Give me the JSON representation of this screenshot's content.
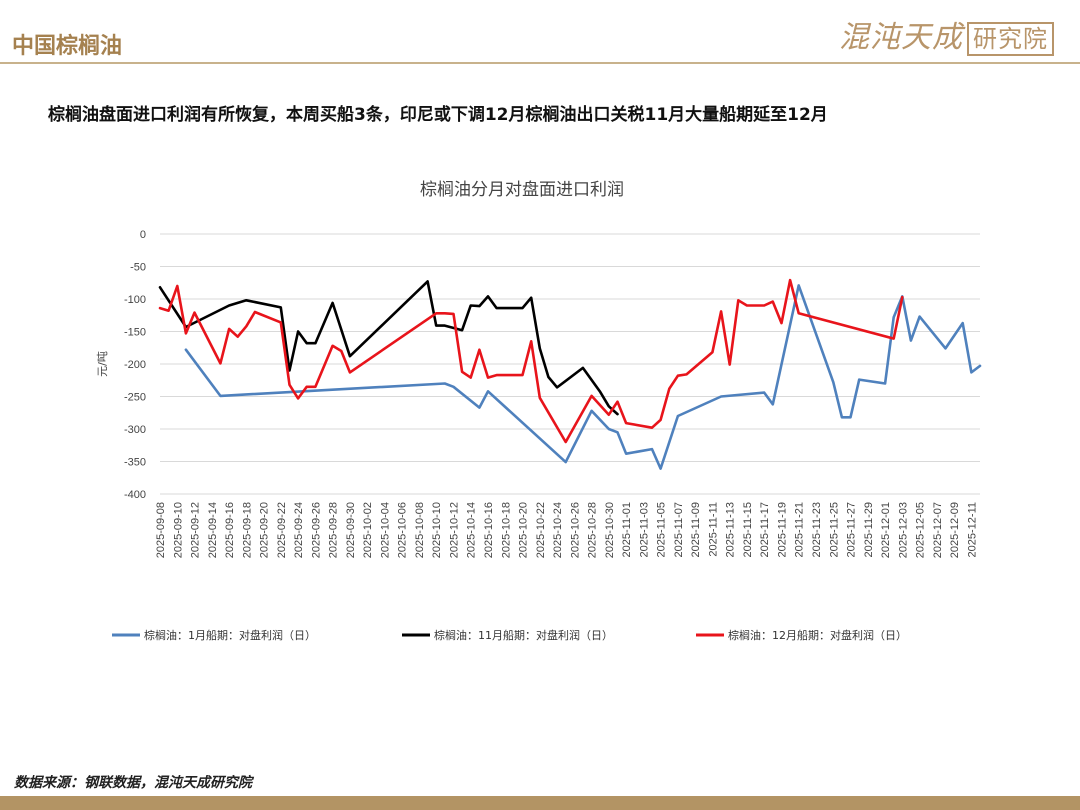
{
  "header": {
    "title": "中国棕榈油",
    "brand_main": "混沌天成",
    "brand_box": "研究院"
  },
  "headline": "棕榈油盘面进口利润有所恢复，本周买船3条，印尼或下调12月棕榈油出口关税11月大量船期延至12月",
  "footer": {
    "source": "数据来源：钢联数据，混沌天成研究院"
  },
  "colors": {
    "jan": "#4f81bd",
    "nov": "#000000",
    "dec": "#e8141b",
    "accent": "#b39464"
  },
  "chart_data": {
    "type": "line",
    "title": "棕榈油分月对盘面进口利润",
    "ylabel": "元/吨",
    "ylim": [
      -400,
      0
    ],
    "yticks": [
      0,
      -50,
      -100,
      -150,
      -200,
      -250,
      -300,
      -350,
      -400
    ],
    "xlim": [
      "2025-09-08",
      "2025-12-12"
    ],
    "x_ticks": [
      "2025-09-08",
      "2025-09-10",
      "2025-09-12",
      "2025-09-14",
      "2025-09-16",
      "2025-09-18",
      "2025-09-20",
      "2025-09-22",
      "2025-09-24",
      "2025-09-26",
      "2025-09-28",
      "2025-09-30",
      "2025-10-02",
      "2025-10-04",
      "2025-10-06",
      "2025-10-08",
      "2025-10-10",
      "2025-10-12",
      "2025-10-14",
      "2025-10-16",
      "2025-10-18",
      "2025-10-20",
      "2025-10-22",
      "2025-10-24",
      "2025-10-26",
      "2025-10-28",
      "2025-10-30",
      "2025-11-01",
      "2025-11-03",
      "2025-11-05",
      "2025-11-07",
      "2025-11-09",
      "2025-11-11",
      "2025-11-13",
      "2025-11-15",
      "2025-11-17",
      "2025-11-19",
      "2025-11-21",
      "2025-11-23",
      "2025-11-25",
      "2025-11-27",
      "2025-11-29",
      "2025-12-01",
      "2025-12-03",
      "2025-12-05",
      "2025-12-07",
      "2025-12-09",
      "2025-12-11"
    ],
    "series": [
      {
        "name": "棕榈油：1月船期：对盘利润（日）",
        "color": "#4f81bd",
        "points": [
          [
            "2025-09-11",
            -178
          ],
          [
            "2025-09-15",
            -249
          ],
          [
            "2025-10-11",
            -230
          ],
          [
            "2025-10-12",
            -235
          ],
          [
            "2025-10-15",
            -267
          ],
          [
            "2025-10-16",
            -242
          ],
          [
            "2025-10-25",
            -351
          ],
          [
            "2025-10-28",
            -272
          ],
          [
            "2025-10-30",
            -300
          ],
          [
            "2025-10-31",
            -305
          ],
          [
            "2025-11-01",
            -338
          ],
          [
            "2025-11-04",
            -331
          ],
          [
            "2025-11-05",
            -361
          ],
          [
            "2025-11-07",
            -280
          ],
          [
            "2025-11-12",
            -250
          ],
          [
            "2025-11-17",
            -244
          ],
          [
            "2025-11-18",
            -262
          ],
          [
            "2025-11-21",
            -79
          ],
          [
            "2025-11-25",
            -228
          ],
          [
            "2025-11-26",
            -282
          ],
          [
            "2025-11-27",
            -282
          ],
          [
            "2025-11-28",
            -224
          ],
          [
            "2025-12-01",
            -230
          ],
          [
            "2025-12-02",
            -128
          ],
          [
            "2025-12-03",
            -96
          ],
          [
            "2025-12-04",
            -164
          ],
          [
            "2025-12-05",
            -127
          ],
          [
            "2025-12-08",
            -176
          ],
          [
            "2025-12-10",
            -137
          ],
          [
            "2025-12-11",
            -213
          ],
          [
            "2025-12-12",
            -203
          ]
        ]
      },
      {
        "name": "棕榈油：11月船期：对盘利润（日）",
        "color": "#000000",
        "points": [
          [
            "2025-09-08",
            -82
          ],
          [
            "2025-09-11",
            -143
          ],
          [
            "2025-09-16",
            -110
          ],
          [
            "2025-09-18",
            -102
          ],
          [
            "2025-09-22",
            -113
          ],
          [
            "2025-09-23",
            -210
          ],
          [
            "2025-09-24",
            -150
          ],
          [
            "2025-09-25",
            -168
          ],
          [
            "2025-09-26",
            -168
          ],
          [
            "2025-09-28",
            -106
          ],
          [
            "2025-09-30",
            -188
          ],
          [
            "2025-10-09",
            -73
          ],
          [
            "2025-10-10",
            -141
          ],
          [
            "2025-10-11",
            -141
          ],
          [
            "2025-10-13",
            -148
          ],
          [
            "2025-10-14",
            -110
          ],
          [
            "2025-10-15",
            -111
          ],
          [
            "2025-10-16",
            -96
          ],
          [
            "2025-10-17",
            -114
          ],
          [
            "2025-10-20",
            -114
          ],
          [
            "2025-10-21",
            -98
          ],
          [
            "2025-10-22",
            -176
          ],
          [
            "2025-10-23",
            -220
          ],
          [
            "2025-10-24",
            -236
          ],
          [
            "2025-10-27",
            -206
          ],
          [
            "2025-10-29",
            -243
          ],
          [
            "2025-10-30",
            -265
          ],
          [
            "2025-10-31",
            -277
          ]
        ]
      },
      {
        "name": "棕榈油：12月船期：对盘利润（日）",
        "color": "#e8141b",
        "points": [
          [
            "2025-09-08",
            -114
          ],
          [
            "2025-09-09",
            -118
          ],
          [
            "2025-09-10",
            -80
          ],
          [
            "2025-09-11",
            -153
          ],
          [
            "2025-09-12",
            -121
          ],
          [
            "2025-09-15",
            -199
          ],
          [
            "2025-09-16",
            -146
          ],
          [
            "2025-09-17",
            -158
          ],
          [
            "2025-09-18",
            -142
          ],
          [
            "2025-09-19",
            -120
          ],
          [
            "2025-09-22",
            -136
          ],
          [
            "2025-09-23",
            -232
          ],
          [
            "2025-09-24",
            -253
          ],
          [
            "2025-09-25",
            -235
          ],
          [
            "2025-09-26",
            -235
          ],
          [
            "2025-09-28",
            -172
          ],
          [
            "2025-09-29",
            -180
          ],
          [
            "2025-09-30",
            -213
          ],
          [
            "2025-10-10",
            -122
          ],
          [
            "2025-10-11",
            -122
          ],
          [
            "2025-10-12",
            -123
          ],
          [
            "2025-10-13",
            -212
          ],
          [
            "2025-10-14",
            -221
          ],
          [
            "2025-10-15",
            -178
          ],
          [
            "2025-10-16",
            -221
          ],
          [
            "2025-10-17",
            -217
          ],
          [
            "2025-10-20",
            -217
          ],
          [
            "2025-10-21",
            -165
          ],
          [
            "2025-10-22",
            -252
          ],
          [
            "2025-10-25",
            -320
          ],
          [
            "2025-10-28",
            -249
          ],
          [
            "2025-10-30",
            -278
          ],
          [
            "2025-10-31",
            -258
          ],
          [
            "2025-11-01",
            -291
          ],
          [
            "2025-11-04",
            -298
          ],
          [
            "2025-11-05",
            -286
          ],
          [
            "2025-11-06",
            -238
          ],
          [
            "2025-11-07",
            -218
          ],
          [
            "2025-11-08",
            -216
          ],
          [
            "2025-11-11",
            -182
          ],
          [
            "2025-11-12",
            -119
          ],
          [
            "2025-11-13",
            -201
          ],
          [
            "2025-11-14",
            -102
          ],
          [
            "2025-11-15",
            -110
          ],
          [
            "2025-11-17",
            -110
          ],
          [
            "2025-11-18",
            -104
          ],
          [
            "2025-11-19",
            -137
          ],
          [
            "2025-11-20",
            -71
          ],
          [
            "2025-11-21",
            -122
          ],
          [
            "2025-12-02",
            -161
          ],
          [
            "2025-12-03",
            -97
          ]
        ]
      }
    ],
    "legend_position": "bottom"
  }
}
